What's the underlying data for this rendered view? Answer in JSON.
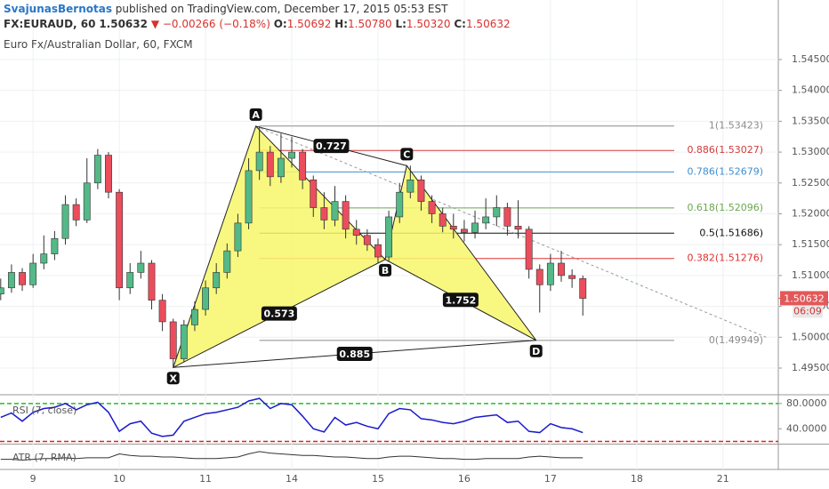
{
  "header": {
    "user": "SvajunasBernotas",
    "published": "published on TradingView.com, December 17, 2015 05:53 EST",
    "symbol": "FX:EURAUD, 60",
    "last": "1.50632",
    "change": "▼ −0.00266 (−0.18%)",
    "ohlc": [
      {
        "key": "O:",
        "value": "1.50692"
      },
      {
        "key": "H:",
        "value": "1.50780"
      },
      {
        "key": "L:",
        "value": "1.50320"
      },
      {
        "key": "C:",
        "value": "1.50632"
      }
    ]
  },
  "chart_data": {
    "type": "candlestick",
    "title": "Euro Fx/Australian Dollar, 60, FXCM",
    "xlim": [
      -9.2,
      207.4
    ],
    "ylim": [
      1.49082,
      1.55465
    ],
    "xticks": [
      {
        "value": 0,
        "label": "9"
      },
      {
        "value": 24,
        "label": "10"
      },
      {
        "value": 48,
        "label": "11"
      },
      {
        "value": 72,
        "label": "14"
      },
      {
        "value": 96,
        "label": "15"
      },
      {
        "value": 120,
        "label": "16"
      },
      {
        "value": 144,
        "label": "17"
      },
      {
        "value": 168,
        "label": "18"
      },
      {
        "value": 192,
        "label": "21"
      }
    ],
    "yticks": [
      {
        "value": 1.495,
        "label": "1.49500"
      },
      {
        "value": 1.5,
        "label": "1.50000"
      },
      {
        "value": 1.505,
        "label": "1.50500"
      },
      {
        "value": 1.51,
        "label": "1.51000"
      },
      {
        "value": 1.515,
        "label": "1.51500"
      },
      {
        "value": 1.52,
        "label": "1.52000"
      },
      {
        "value": 1.525,
        "label": "1.52500"
      },
      {
        "value": 1.53,
        "label": "1.53000"
      },
      {
        "value": 1.535,
        "label": "1.53500"
      },
      {
        "value": 1.54,
        "label": "1.54000"
      },
      {
        "value": 1.545,
        "label": "1.54500"
      }
    ],
    "grid": true,
    "up_color": "#53b987",
    "down_color": "#eb4d5c",
    "candles": {
      "x": [
        -9,
        -6,
        -3,
        0,
        3,
        6,
        9,
        12,
        15,
        18,
        21,
        24,
        27,
        30,
        33,
        36,
        39,
        42,
        45,
        48,
        51,
        54,
        57,
        60,
        63,
        66,
        69,
        72,
        75,
        78,
        81,
        84,
        87,
        90,
        93,
        96,
        99,
        102,
        105,
        108,
        111,
        114,
        117,
        120,
        123,
        126,
        129,
        132,
        135,
        138,
        141,
        144,
        147,
        150,
        153
      ],
      "open": [
        1.507,
        1.508,
        1.5105,
        1.5085,
        1.512,
        1.5135,
        1.516,
        1.5215,
        1.519,
        1.525,
        1.5295,
        1.5235,
        1.508,
        1.5105,
        1.512,
        1.506,
        1.5025,
        1.4965,
        1.502,
        1.5045,
        1.508,
        1.5105,
        1.514,
        1.5185,
        1.527,
        1.53,
        1.526,
        1.529,
        1.53,
        1.5255,
        1.521,
        1.519,
        1.522,
        1.5175,
        1.5165,
        1.515,
        1.513,
        1.5195,
        1.5235,
        1.5255,
        1.522,
        1.52,
        1.518,
        1.5175,
        1.517,
        1.5185,
        1.5195,
        1.521,
        1.518,
        1.5175,
        1.511,
        1.5085,
        1.512,
        1.51,
        1.5095
      ],
      "high": [
        1.5095,
        1.5118,
        1.5112,
        1.5135,
        1.5165,
        1.5172,
        1.523,
        1.5225,
        1.529,
        1.5305,
        1.53,
        1.524,
        1.512,
        1.514,
        1.5125,
        1.507,
        1.503,
        1.5028,
        1.5058,
        1.5092,
        1.512,
        1.5152,
        1.52,
        1.529,
        1.5342,
        1.531,
        1.533,
        1.5325,
        1.5305,
        1.5262,
        1.5235,
        1.5245,
        1.523,
        1.519,
        1.5175,
        1.516,
        1.5205,
        1.525,
        1.5278,
        1.5262,
        1.523,
        1.521,
        1.52,
        1.519,
        1.5205,
        1.5225,
        1.523,
        1.5218,
        1.5222,
        1.518,
        1.5118,
        1.5135,
        1.514,
        1.511,
        1.51
      ],
      "low": [
        1.506,
        1.5072,
        1.5075,
        1.508,
        1.511,
        1.5125,
        1.515,
        1.518,
        1.5185,
        1.524,
        1.5225,
        1.506,
        1.507,
        1.5095,
        1.5045,
        1.501,
        1.4951,
        1.496,
        1.501,
        1.5035,
        1.507,
        1.5095,
        1.513,
        1.5175,
        1.5255,
        1.5245,
        1.525,
        1.5275,
        1.524,
        1.5195,
        1.5175,
        1.518,
        1.516,
        1.515,
        1.514,
        1.512,
        1.5122,
        1.5185,
        1.5225,
        1.5205,
        1.5185,
        1.517,
        1.516,
        1.5155,
        1.516,
        1.5175,
        1.518,
        1.5165,
        1.516,
        1.5095,
        1.504,
        1.5075,
        1.509,
        1.508,
        1.5035
      ],
      "close": [
        1.508,
        1.5105,
        1.5085,
        1.512,
        1.5135,
        1.516,
        1.5215,
        1.519,
        1.525,
        1.5295,
        1.5235,
        1.508,
        1.5105,
        1.512,
        1.506,
        1.5025,
        1.4965,
        1.502,
        1.5045,
        1.508,
        1.5105,
        1.514,
        1.5185,
        1.527,
        1.53,
        1.526,
        1.529,
        1.53,
        1.5255,
        1.521,
        1.519,
        1.522,
        1.5175,
        1.5165,
        1.515,
        1.513,
        1.5195,
        1.5235,
        1.5255,
        1.522,
        1.52,
        1.518,
        1.5175,
        1.517,
        1.5185,
        1.5195,
        1.521,
        1.518,
        1.5175,
        1.511,
        1.5085,
        1.512,
        1.51,
        1.5095,
        1.5063
      ]
    },
    "last_price": {
      "value": 1.50632,
      "label": "1.50632",
      "color": "#e35959"
    },
    "countdown": "06:09",
    "pattern": {
      "color": "#f7f76b",
      "points": [
        {
          "label": "X",
          "x": 39,
          "price": 1.4951
        },
        {
          "label": "A",
          "x": 62,
          "price": 1.5342
        },
        {
          "label": "B",
          "x": 98,
          "price": 1.5126
        },
        {
          "label": "C",
          "x": 104,
          "price": 1.5278
        },
        {
          "label": "D",
          "x": 140,
          "price": 1.4995
        }
      ],
      "ratios": [
        "0.727",
        "0.573",
        "1.752",
        "0.885"
      ]
    },
    "trend_line": {
      "x": [
        62,
        204
      ],
      "price": [
        1.5342,
        1.5
      ]
    },
    "fib_levels": [
      {
        "label": "1(1.53423)",
        "price": 1.53423,
        "color": "#8c8c8c"
      },
      {
        "label": "0.886(1.53027)",
        "price": 1.53027,
        "color": "#d23c3c"
      },
      {
        "label": "0.786(1.52679)",
        "price": 1.52679,
        "color": "#3d8fd1"
      },
      {
        "label": "0.618(1.52096)",
        "price": 1.52096,
        "color": "#6aa84f"
      },
      {
        "label": "0.5(1.51686)",
        "price": 1.51686,
        "color": "#111111"
      },
      {
        "label": "0.382(1.51276)",
        "price": 1.51276,
        "color": "#e03030"
      },
      {
        "label": "0(1.49949)",
        "price": 1.49949,
        "color": "#8c8c8c"
      }
    ],
    "rsi": {
      "title": "RSI (7, close)",
      "color": "#1a1acc",
      "ylim": [
        17.9,
        92.4
      ],
      "yticks": [
        {
          "value": 80,
          "label": "80.0000"
        },
        {
          "value": 40,
          "label": "40.0000"
        }
      ],
      "bands": [
        {
          "value": 80,
          "color": "#22c022"
        },
        {
          "value": 20,
          "color": "#e02020"
        }
      ],
      "values": [
        58,
        65,
        52,
        66,
        72,
        74,
        80,
        70,
        78,
        82,
        66,
        36,
        48,
        52,
        33,
        28,
        30,
        52,
        58,
        64,
        66,
        70,
        74,
        84,
        88,
        72,
        80,
        78,
        60,
        40,
        35,
        58,
        46,
        50,
        44,
        40,
        64,
        72,
        70,
        56,
        54,
        50,
        48,
        52,
        58,
        60,
        62,
        50,
        52,
        36,
        34,
        48,
        42,
        40,
        34
      ]
    },
    "atr": {
      "title": "ATR (7, RMA)",
      "color": "#333333",
      "ylim": [
        0.0005,
        0.0035
      ],
      "values": [
        0.0017,
        0.0017,
        0.0016,
        0.0017,
        0.0018,
        0.0018,
        0.0019,
        0.0018,
        0.0019,
        0.0019,
        0.0019,
        0.0024,
        0.0022,
        0.0021,
        0.0021,
        0.002,
        0.002,
        0.0019,
        0.0018,
        0.0018,
        0.0018,
        0.0019,
        0.002,
        0.0024,
        0.0027,
        0.0025,
        0.0024,
        0.0023,
        0.0022,
        0.0022,
        0.0021,
        0.002,
        0.002,
        0.0019,
        0.0018,
        0.0018,
        0.002,
        0.0021,
        0.0021,
        0.002,
        0.0019,
        0.0018,
        0.0018,
        0.0017,
        0.0017,
        0.0018,
        0.0018,
        0.0018,
        0.0018,
        0.002,
        0.0021,
        0.002,
        0.0019,
        0.0019,
        0.0019
      ]
    }
  }
}
